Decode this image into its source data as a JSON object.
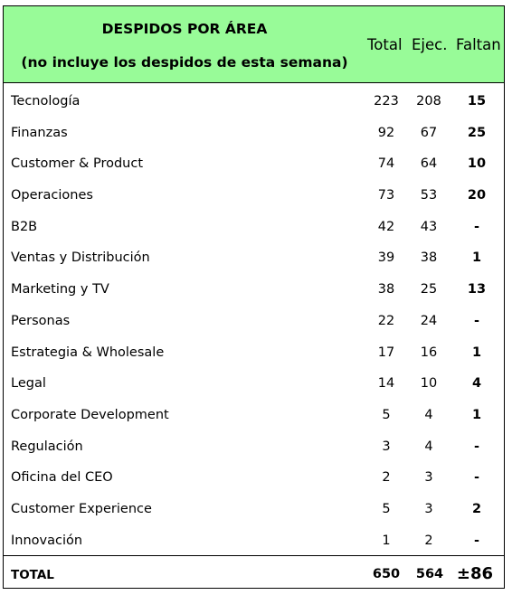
{
  "table": {
    "title_line1": "DESPIDOS POR ÁREA",
    "title_line2": "(no incluye los despidos de esta semana)",
    "columns": {
      "total": "Total",
      "ejec": "Ejec.",
      "faltan": "Faltan"
    },
    "header_color": "#98fb98",
    "rows": [
      {
        "area": "Tecnología",
        "total": "223",
        "ejec": "208",
        "faltan": "15"
      },
      {
        "area": "Finanzas",
        "total": "92",
        "ejec": "67",
        "faltan": "25"
      },
      {
        "area": "Customer & Product",
        "total": "74",
        "ejec": "64",
        "faltan": "10"
      },
      {
        "area": "Operaciones",
        "total": "73",
        "ejec": "53",
        "faltan": "20"
      },
      {
        "area": "B2B",
        "total": "42",
        "ejec": "43",
        "faltan": "-"
      },
      {
        "area": "Ventas y Distribución",
        "total": "39",
        "ejec": "38",
        "faltan": "1"
      },
      {
        "area": "Marketing y TV",
        "total": "38",
        "ejec": "25",
        "faltan": "13"
      },
      {
        "area": "Personas",
        "total": "22",
        "ejec": "24",
        "faltan": "-"
      },
      {
        "area": "Estrategia & Wholesale",
        "total": "17",
        "ejec": "16",
        "faltan": "1"
      },
      {
        "area": "Legal",
        "total": "14",
        "ejec": "10",
        "faltan": "4"
      },
      {
        "area": "Corporate Development",
        "total": "5",
        "ejec": "4",
        "faltan": "1"
      },
      {
        "area": "Regulación",
        "total": "3",
        "ejec": "4",
        "faltan": "-"
      },
      {
        "area": "Oficina del CEO",
        "total": "2",
        "ejec": "3",
        "faltan": "-"
      },
      {
        "area": "Customer Experience",
        "total": "5",
        "ejec": "3",
        "faltan": "2"
      },
      {
        "area": "Innovación",
        "total": "1",
        "ejec": "2",
        "faltan": "-"
      }
    ],
    "totals": {
      "label": "TOTAL",
      "total": "650",
      "ejec": "564",
      "faltan": "±86"
    }
  }
}
